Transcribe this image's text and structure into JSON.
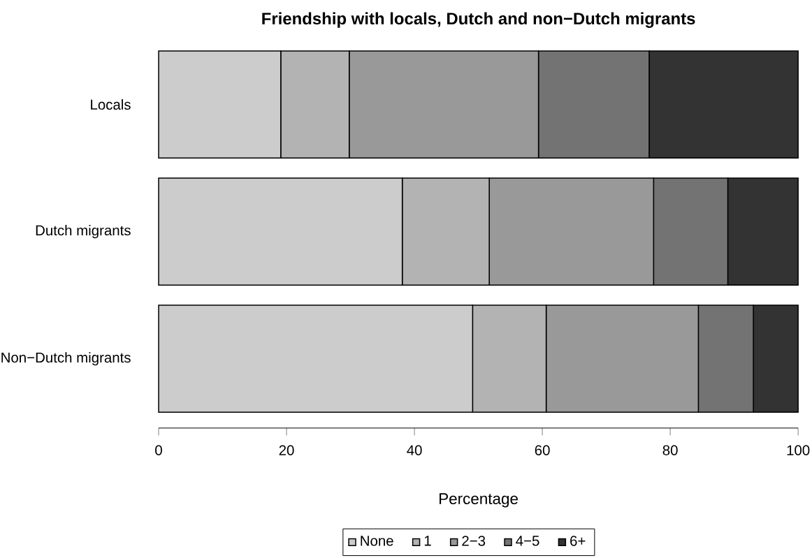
{
  "chart_data": {
    "type": "bar",
    "orientation": "horizontal",
    "stacked": true,
    "title": "Friendship with locals, Dutch and non−Dutch migrants",
    "xlabel": "Percentage",
    "categories": [
      "Locals",
      "Dutch migrants",
      "Non−Dutch migrants"
    ],
    "series": [
      {
        "name": "None",
        "color": "#cccccc",
        "values": [
          19.1,
          38.1,
          49.1
        ]
      },
      {
        "name": "1",
        "color": "#b3b3b3",
        "values": [
          10.7,
          13.6,
          11.5
        ]
      },
      {
        "name": "2−3",
        "color": "#999999",
        "values": [
          29.6,
          25.7,
          23.8
        ]
      },
      {
        "name": "4−5",
        "color": "#737373",
        "values": [
          17.3,
          11.6,
          8.6
        ]
      },
      {
        "name": "6+",
        "color": "#333333",
        "values": [
          23.3,
          11.0,
          7.0
        ]
      }
    ],
    "xlim": [
      0,
      100
    ],
    "xticks": [
      0,
      20,
      40,
      60,
      80,
      100
    ],
    "legend": "bottom",
    "grid": false
  }
}
